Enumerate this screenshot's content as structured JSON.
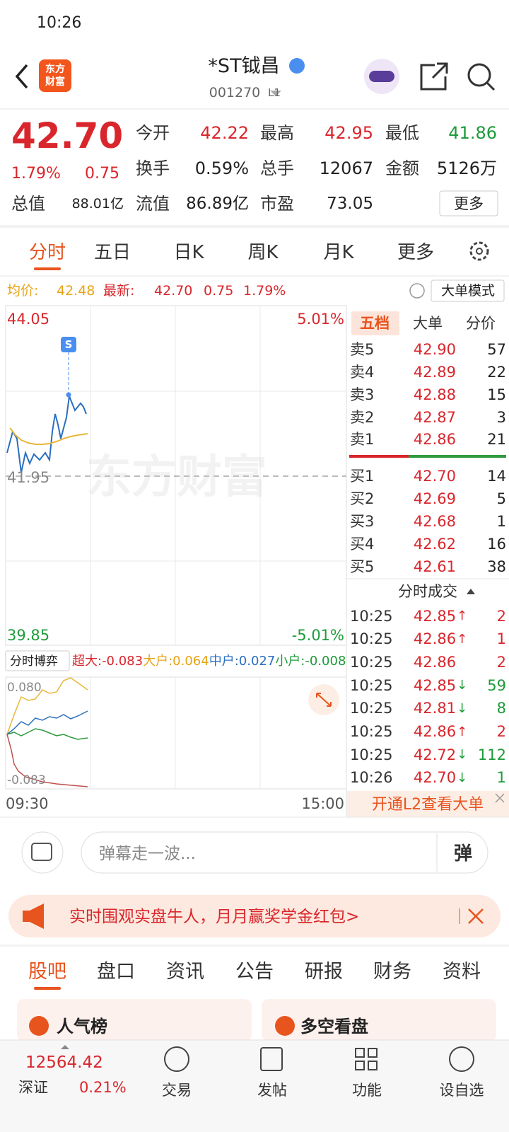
{
  "status_bar": {
    "time": "10:26"
  },
  "header": {
    "logo": [
      "东方",
      "财富"
    ],
    "title": "*ST钺昌",
    "code": "001270",
    "level": "L1"
  },
  "quote": {
    "price": "42.70",
    "change_pct": "1.79%",
    "change": "0.75",
    "fields": [
      {
        "label": "今开",
        "value": "42.22"
      },
      {
        "label": "最高",
        "value": "42.95"
      },
      {
        "label": "最低",
        "value": "41.86"
      },
      {
        "label": "换手",
        "value": "0.59%"
      },
      {
        "label": "总手",
        "value": "12067"
      },
      {
        "label": "金额",
        "value": "5126万"
      },
      {
        "label": "总值",
        "value": "88.01亿"
      },
      {
        "label": "流值",
        "value": "86.89亿"
      },
      {
        "label": "市盈",
        "value": "73.05"
      }
    ],
    "more": "更多"
  },
  "tabs": [
    "分时",
    "五日",
    "日K",
    "周K",
    "月K",
    "更多"
  ],
  "summary": {
    "avg_label": "均价:",
    "avg": "42.48",
    "latest_label": "最新:",
    "latest": "42.70",
    "change": "0.75",
    "change_pct": "1.79%",
    "mode": "大单模式"
  },
  "chart": {
    "y_top": "44.05",
    "y_mid": "41.95",
    "y_bottom": "39.85",
    "pct_top": "5.01%",
    "pct_bottom": "-5.01%",
    "x_start": "09:30",
    "x_end": "15:00",
    "marker": "S",
    "watermark": "东方财富"
  },
  "game": {
    "label": "分时博弈",
    "items": [
      "超大:-0.083",
      "大户:0.064",
      "中户:0.027",
      "小户:-0.008"
    ],
    "top": "0.080",
    "bottom": "-0.083"
  },
  "order_book": {
    "tabs": [
      "五档",
      "大单",
      "分价"
    ],
    "asks": [
      {
        "label": "卖5",
        "price": "42.90",
        "volume": "57"
      },
      {
        "label": "卖4",
        "price": "42.89",
        "volume": "22"
      },
      {
        "label": "卖3",
        "price": "42.88",
        "volume": "15"
      },
      {
        "label": "卖2",
        "price": "42.87",
        "volume": "3"
      },
      {
        "label": "卖1",
        "price": "42.86",
        "volume": "21"
      }
    ],
    "bids": [
      {
        "label": "买1",
        "price": "42.70",
        "volume": "14"
      },
      {
        "label": "买2",
        "price": "42.69",
        "volume": "5"
      },
      {
        "label": "买3",
        "price": "42.68",
        "volume": "1"
      },
      {
        "label": "买4",
        "price": "42.62",
        "volume": "16"
      },
      {
        "label": "买5",
        "price": "42.61",
        "volume": "38"
      }
    ]
  },
  "trades": {
    "title": "分时成交",
    "rows": [
      {
        "time": "10:25",
        "price": "42.85",
        "dir": "↑",
        "volume": "2"
      },
      {
        "time": "10:25",
        "price": "42.86",
        "dir": "↑",
        "volume": "1"
      },
      {
        "time": "10:25",
        "price": "42.86",
        "dir": "",
        "volume": "2"
      },
      {
        "time": "10:25",
        "price": "42.85",
        "dir": "↓",
        "volume": "59"
      },
      {
        "time": "10:25",
        "price": "42.81",
        "dir": "↓",
        "volume": "8"
      },
      {
        "time": "10:25",
        "price": "42.86",
        "dir": "↑",
        "volume": "2"
      },
      {
        "time": "10:25",
        "price": "42.72",
        "dir": "↓",
        "volume": "112"
      },
      {
        "time": "10:26",
        "price": "42.70",
        "dir": "↓",
        "volume": "1"
      }
    ],
    "cta": "开通L2查看大单"
  },
  "comment": {
    "placeholder": "弹幕走一波...",
    "button": "弹"
  },
  "banner": {
    "text": "实时围观实盘牛人，月月赢奖学金红包>"
  },
  "section_tabs": [
    "股吧",
    "盘口",
    "资讯",
    "公告",
    "研报",
    "财务",
    "资料"
  ],
  "cards": [
    "人气榜",
    "多空看盘"
  ],
  "bottom_bar": {
    "index_value": "12564.42",
    "index_name": "深证",
    "index_pct": "0.21%",
    "items": [
      "交易",
      "发帖",
      "功能",
      "设自选"
    ]
  }
}
